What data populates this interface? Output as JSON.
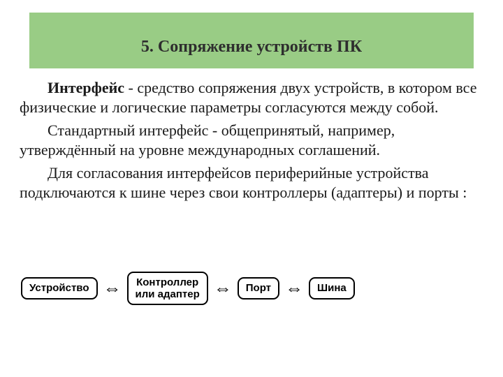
{
  "header": {
    "title": "5. Сопряжение устройств ПК",
    "background_color": "#99cc85",
    "title_color": "#2e2e2e",
    "title_fontsize": 24
  },
  "body": {
    "color": "#1a1a1a",
    "fontsize": 22,
    "p1_bold": "Интерфейс",
    "p1_rest": " - средство сопряжения двух устройств, в котором все физические и логические параметры согласуются между собой.",
    "p2": "Стандартный интерфейс - общепринятый, например, утверждённый на уровне международных соглашений.",
    "p3": "Для согласования интерфейсов периферийные устройства подключаются к шине через свои контроллеры (адаптеры) и порты :"
  },
  "diagram": {
    "type": "flowchart",
    "node_border_color": "#000000",
    "node_background": "#ffffff",
    "node_border_radius": 9,
    "node_fontsize": 15,
    "arrow_glyph": "⇔",
    "arrow_fontsize": 26,
    "nodes": {
      "n1": "Устройство",
      "n2a": "Контроллер",
      "n2b": "или адаптер",
      "n3": "Порт",
      "n4": "Шина"
    }
  }
}
